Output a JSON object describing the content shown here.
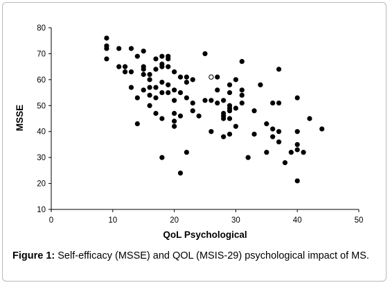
{
  "chart_data": {
    "type": "scatter",
    "title": "",
    "xlabel": "QoL Psychological",
    "ylabel": "MSSE",
    "xlim": [
      0,
      50
    ],
    "ylim": [
      10,
      80
    ],
    "xticks": [
      0,
      10,
      20,
      30,
      40,
      50
    ],
    "yticks": [
      10,
      20,
      30,
      40,
      50,
      60,
      70,
      80
    ],
    "grid": false,
    "legend": "none",
    "marker_color": "#000000",
    "points": [
      [
        9,
        76
      ],
      [
        9,
        73
      ],
      [
        9,
        72
      ],
      [
        9,
        68
      ],
      [
        11,
        72
      ],
      [
        11,
        65
      ],
      [
        12,
        65
      ],
      [
        12,
        63
      ],
      [
        13,
        72
      ],
      [
        13,
        63
      ],
      [
        13,
        57
      ],
      [
        14,
        69
      ],
      [
        14,
        53
      ],
      [
        14,
        43
      ],
      [
        15,
        71
      ],
      [
        15,
        65
      ],
      [
        15,
        64
      ],
      [
        15,
        62
      ],
      [
        15,
        56
      ],
      [
        16,
        62
      ],
      [
        16,
        60
      ],
      [
        16,
        57
      ],
      [
        16,
        54
      ],
      [
        16,
        50
      ],
      [
        17,
        68
      ],
      [
        17,
        64
      ],
      [
        17,
        57
      ],
      [
        17,
        53
      ],
      [
        17,
        47
      ],
      [
        18,
        69
      ],
      [
        18,
        66
      ],
      [
        18,
        65
      ],
      [
        18,
        59
      ],
      [
        18,
        55
      ],
      [
        18,
        45
      ],
      [
        18,
        30
      ],
      [
        19,
        69
      ],
      [
        19,
        68
      ],
      [
        19,
        65
      ],
      [
        19,
        58
      ],
      [
        19,
        55
      ],
      [
        20,
        63
      ],
      [
        20,
        56
      ],
      [
        20,
        52
      ],
      [
        20,
        47
      ],
      [
        20,
        44
      ],
      [
        20,
        42
      ],
      [
        21,
        61
      ],
      [
        21,
        55
      ],
      [
        21,
        46
      ],
      [
        21,
        24
      ],
      [
        22,
        61
      ],
      [
        22,
        59
      ],
      [
        22,
        53
      ],
      [
        22,
        32
      ],
      [
        23,
        60
      ],
      [
        23,
        51
      ],
      [
        23,
        48
      ],
      [
        24,
        46
      ],
      [
        25,
        70
      ],
      [
        25,
        52
      ],
      [
        26,
        52
      ],
      [
        26,
        40
      ],
      [
        27,
        61
      ],
      [
        27,
        56
      ],
      [
        27,
        51
      ],
      [
        28,
        52
      ],
      [
        28,
        47
      ],
      [
        28,
        46
      ],
      [
        28,
        45
      ],
      [
        28,
        38
      ],
      [
        29,
        58
      ],
      [
        29,
        55
      ],
      [
        29,
        50
      ],
      [
        29,
        49
      ],
      [
        29,
        48
      ],
      [
        29,
        45
      ],
      [
        29,
        39
      ],
      [
        30,
        60
      ],
      [
        30,
        49
      ],
      [
        30,
        42
      ],
      [
        31,
        67
      ],
      [
        31,
        56
      ],
      [
        31,
        54
      ],
      [
        31,
        51
      ],
      [
        32,
        30
      ],
      [
        33,
        48
      ],
      [
        33,
        39
      ],
      [
        34,
        58
      ],
      [
        35,
        43
      ],
      [
        35,
        32
      ],
      [
        36,
        51
      ],
      [
        36,
        41
      ],
      [
        36,
        38
      ],
      [
        37,
        64
      ],
      [
        37,
        51
      ],
      [
        37,
        40
      ],
      [
        37,
        36
      ],
      [
        38,
        28
      ],
      [
        39,
        32
      ],
      [
        40,
        53
      ],
      [
        40,
        40
      ],
      [
        40,
        35
      ],
      [
        40,
        33
      ],
      [
        40,
        21
      ],
      [
        41,
        32
      ],
      [
        42,
        45
      ],
      [
        44,
        41
      ]
    ],
    "open_points": [
      [
        26,
        61
      ]
    ]
  },
  "caption": {
    "label": "Figure 1:",
    "text": " Self-efficacy (MSSE) and QOL (MSIS-29) psychological impact of MS."
  }
}
